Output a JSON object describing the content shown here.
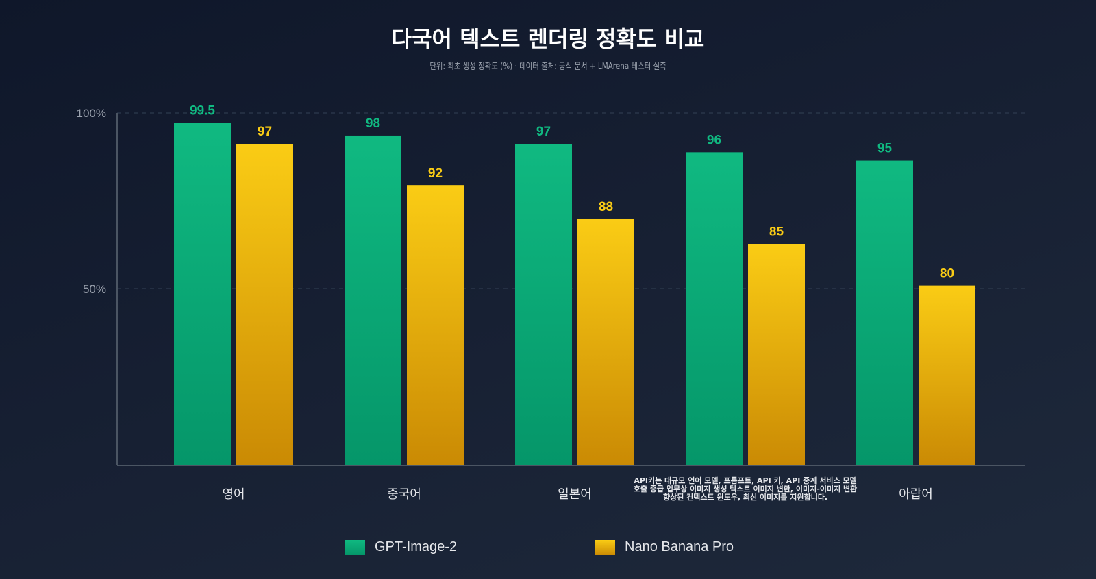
{
  "chart_data": {
    "type": "bar",
    "title": "다국어 텍스트 렌더링 정확도 비교",
    "subtitle": "단위: 최초 생성 정확도 (%) · 데이터 출처: 공식 문서 + LMArena 테스터 실측",
    "categories": [
      "영어",
      "중국어",
      "일본어",
      "API키는 대규모 언어 모델, 프롬프트, API 키, API 중계 서비스 모델 호출 중급 업무상 이미지 생성 텍스트 이미지 변환, 이미지-이미지 변환 향상된 컨텍스트 윈도우, 최신 이미지를 지원합니다.",
      "아랍어"
    ],
    "series": [
      {
        "name": "GPT-Image-2",
        "values": [
          99.5,
          98,
          97,
          96,
          95
        ],
        "color": "#10b981"
      },
      {
        "name": "Nano Banana Pro",
        "values": [
          97,
          92,
          88,
          85,
          80
        ],
        "color": "#facc15"
      }
    ],
    "yticks": [
      "50%",
      "100%"
    ],
    "grid": true,
    "legend": "bottom"
  }
}
